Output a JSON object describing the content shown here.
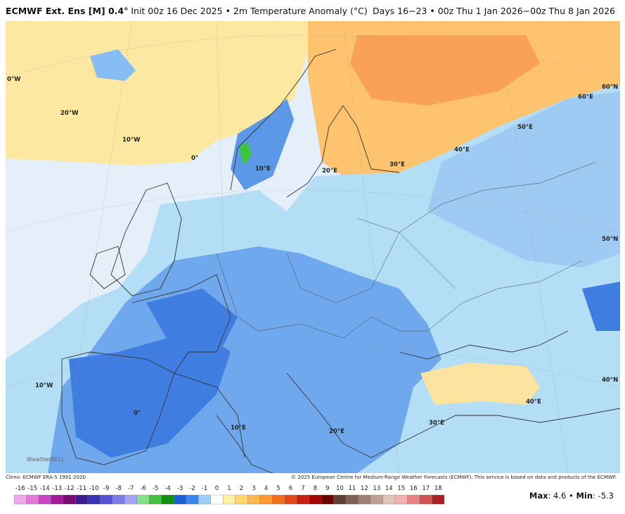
{
  "header": {
    "title_bold": "ECMWF Ext. Ens [M] 0.4°",
    "title_rest": "Init 00z 16 Dec 2025 • 2m Temperature Anomaly (°C)",
    "valid": "Days 16−23 • 00z Thu 1 Jan 2026−00z Thu 8 Jan 2026"
  },
  "map": {
    "labels": [
      "0°W",
      "20°W",
      "10°W",
      "0°",
      "10°E",
      "20°E",
      "30°E",
      "40°E",
      "50°E",
      "60°E",
      "60°N",
      "50°N",
      "40°N",
      "10°W",
      "0°",
      "10°E",
      "20°E",
      "30°E",
      "40°E"
    ],
    "logo": "WeatherBELL"
  },
  "footer": {
    "climo": "Climo: ECMWF ERA-5 1991-2020",
    "copyright": "© 2025 European Centre for Medium-Range Weather Forecasts (ECMWF). This service is based on data and products of the ECMWF."
  },
  "colorbar": {
    "ticks": [
      -16,
      -15,
      -14,
      -13,
      -12,
      -11,
      -10,
      -9,
      -8,
      -7,
      -6,
      -5,
      -4,
      -3,
      -2,
      -1,
      0,
      1,
      2,
      3,
      4,
      5,
      6,
      7,
      8,
      9,
      10,
      11,
      12,
      13,
      14,
      15,
      16,
      17,
      18
    ],
    "colors": [
      "#f2a6ea",
      "#e278da",
      "#c846c0",
      "#a01c98",
      "#780a70",
      "#3c1c8c",
      "#3434b4",
      "#5454d2",
      "#7c7ce2",
      "#a4a4f2",
      "#84e084",
      "#44c044",
      "#129012",
      "#1c60d8",
      "#3c86f0",
      "#9ccefa",
      "#ffffff",
      "#fff0a0",
      "#ffd870",
      "#ffb850",
      "#ff9830",
      "#f07020",
      "#e04818",
      "#c82010",
      "#a00808",
      "#6e0202",
      "#604030",
      "#806050",
      "#a08070",
      "#c0a090",
      "#e0c4b4",
      "#f2b2b2",
      "#e88282",
      "#d05252",
      "#a82222"
    ]
  },
  "stats": {
    "max_label": "Max",
    "max": 4.6,
    "min_label": "Min",
    "min": -5.3
  }
}
